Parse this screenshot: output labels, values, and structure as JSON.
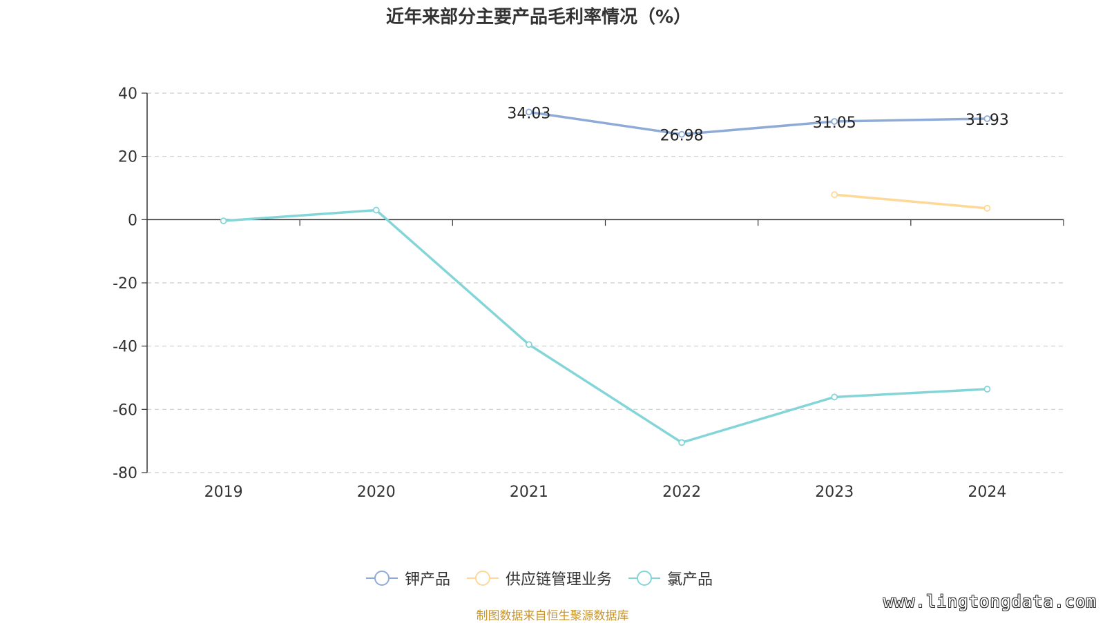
{
  "chart_data": {
    "type": "line",
    "title": "近年来部分主要产品毛利率情况（%）",
    "categories": [
      "2019",
      "2020",
      "2021",
      "2022",
      "2023",
      "2024"
    ],
    "ylim": [
      -80,
      40
    ],
    "yticks": [
      40,
      20,
      0,
      -20,
      -40,
      -60,
      -80
    ],
    "grid": true,
    "legend_position": "bottom",
    "series": [
      {
        "name": "钾产品",
        "color": "#8eabd8",
        "values": [
          null,
          null,
          34.03,
          26.98,
          31.05,
          31.93
        ],
        "labels": [
          "",
          "",
          "34.03",
          "26.98",
          "31.05",
          "31.93"
        ]
      },
      {
        "name": "供应链管理业务",
        "color": "#fdd897",
        "values": [
          null,
          null,
          null,
          null,
          7.9,
          3.6
        ],
        "labels": [
          "",
          "",
          "",
          "",
          "",
          ""
        ]
      },
      {
        "name": "氯产品",
        "color": "#84d5d8",
        "values": [
          -0.4,
          3.0,
          -39.5,
          -70.5,
          -56.1,
          -53.6
        ],
        "labels": [
          "",
          "",
          "",
          "",
          "",
          ""
        ]
      }
    ]
  },
  "footer": {
    "source": "制图数据来自恒生聚源数据库",
    "watermark": "www.lingtongdata.com"
  }
}
